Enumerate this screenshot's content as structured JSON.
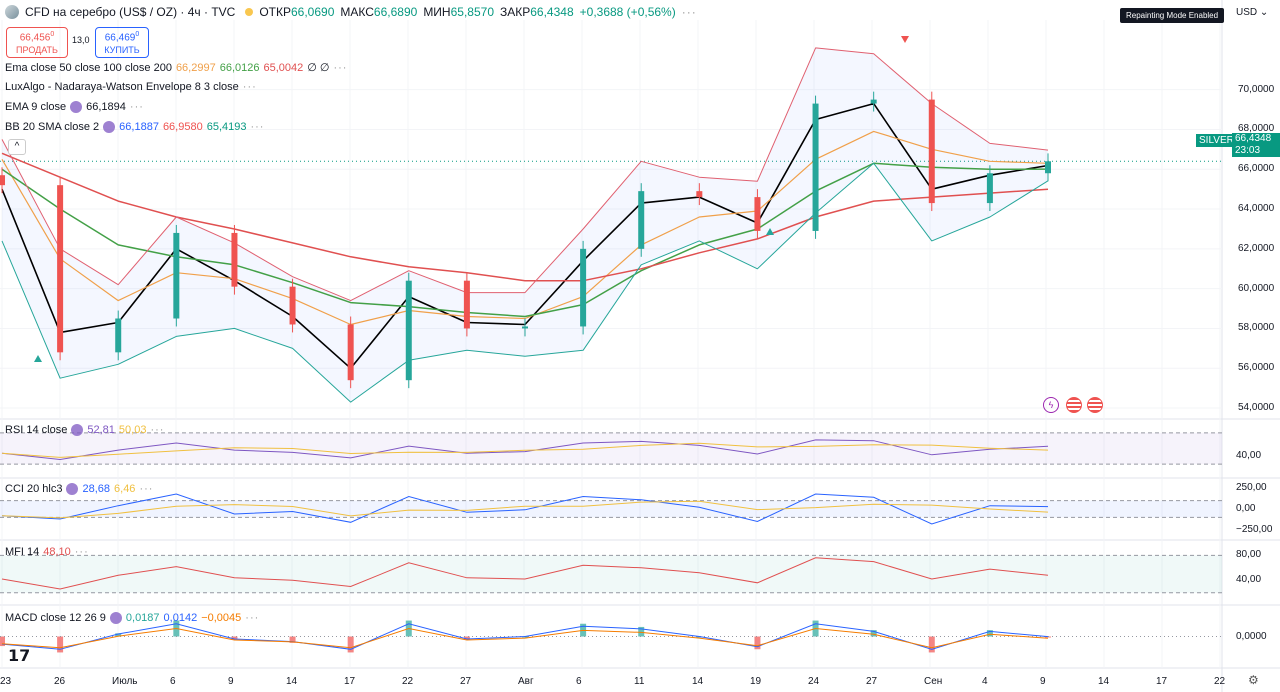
{
  "header": {
    "title": "CFD на серебро (US$ / OZ) · 4ч · TVC",
    "ohlc": {
      "open_label": "ОТКР",
      "open": "66,0690",
      "high_label": "МАКС",
      "high": "66,6890",
      "low_label": "МИН",
      "low": "65,8570",
      "close_label": "ЗАКР",
      "close": "66,4348",
      "change": "+0,3688 (+0,56%)"
    },
    "sell_price": "66,456",
    "sell_sup": "0",
    "sell_label": "ПРОДАТЬ",
    "spread": "13,0",
    "buy_price": "66,469",
    "buy_sup": "0",
    "buy_label": "КУПИТЬ",
    "repaint_badge": "Repainting Mode Enabled",
    "currency": "USD"
  },
  "indicators": {
    "ema_trio": {
      "label": "Ema close 50 close 100 close 200",
      "v1": "66,2997",
      "v2": "66,0126",
      "v3": "65,0042",
      "extra": "∅ ∅"
    },
    "luxalgo": {
      "label": "LuxAlgo - Nadaraya-Watson Envelope 8 3 close"
    },
    "ema9": {
      "label": "EMA 9 close",
      "v1": "66,1894"
    },
    "bb": {
      "label": "BB 20 SMA close 2",
      "v1": "66,1887",
      "v2": "66,9580",
      "v3": "65,4193"
    }
  },
  "panes": {
    "rsi": {
      "label": "RSI 14 close",
      "v1": "52,81",
      "v2": "50,03",
      "scale": [
        "40,00"
      ]
    },
    "cci": {
      "label": "CCI 20 hlc3",
      "v1": "28,68",
      "v2": "6,46",
      "scale": [
        "250,00",
        "0,00",
        "−250,00"
      ]
    },
    "mfi": {
      "label": "MFI 14",
      "v1": "48,10",
      "scale": [
        "80,00",
        "40,00"
      ]
    },
    "macd": {
      "label": "MACD close 12 26 9",
      "v1": "0,0187",
      "v2": "0,0142",
      "v3": "−0,0045",
      "scale": [
        "0,0000"
      ]
    }
  },
  "price_axis": {
    "ticks": [
      "70,0000",
      "68,0000",
      "66,0000",
      "64,0000",
      "62,0000",
      "60,0000",
      "58,0000",
      "56,0000",
      "54,0000"
    ],
    "symbol_tag": "SILVER",
    "last_price": "66,4348",
    "countdown": "23:03"
  },
  "time_axis": {
    "ticks": [
      "23",
      "26",
      "Июль",
      "6",
      "9",
      "14",
      "17",
      "22",
      "27",
      "Авг",
      "6",
      "11",
      "14",
      "19",
      "24",
      "27",
      "Сен",
      "4",
      "9",
      "14",
      "17",
      "22"
    ]
  },
  "colors": {
    "up": "#26a69a",
    "down": "#ef5350",
    "ema50": "#f0a04a",
    "ema100": "#43a047",
    "ema200": "#e05050",
    "ema9": "#000000",
    "bb_basis": "#2962ff",
    "bb_band": "#e06070",
    "envelope": "#26a69a",
    "accent": "#2962ff"
  },
  "chart_data": {
    "type": "line",
    "title": "CFD на серебро (US$ / OZ) · 4ч · TVC",
    "ylim": [
      53.5,
      73.5
    ],
    "x": [
      "23",
      "26",
      "Июль",
      "6",
      "9",
      "14",
      "17",
      "22",
      "27",
      "Авг",
      "6",
      "11",
      "14",
      "19",
      "24",
      "27",
      "Сен",
      "4",
      "9"
    ],
    "series": [
      {
        "name": "Close",
        "values": [
          65.2,
          56.8,
          58.5,
          62.8,
          60.1,
          58.2,
          55.4,
          60.4,
          58.0,
          58.1,
          62.0,
          64.9,
          64.6,
          62.9,
          69.3,
          69.5,
          64.3,
          65.8,
          66.4
        ]
      },
      {
        "name": "EMA 9 close",
        "values": [
          65.0,
          57.8,
          58.3,
          62.0,
          60.4,
          58.6,
          56.0,
          59.6,
          58.3,
          58.2,
          61.4,
          64.3,
          64.6,
          63.3,
          68.5,
          69.3,
          65.0,
          65.7,
          66.19
        ]
      },
      {
        "name": "Ema close 50",
        "values": [
          66.5,
          61.5,
          59.4,
          60.8,
          60.5,
          59.5,
          58.2,
          58.9,
          58.6,
          58.5,
          59.6,
          62.2,
          63.6,
          63.9,
          66.5,
          67.9,
          67.0,
          66.4,
          66.3
        ]
      },
      {
        "name": "Ema close 100",
        "values": [
          66.0,
          64.0,
          62.2,
          61.6,
          61.2,
          60.3,
          59.3,
          59.1,
          58.8,
          58.6,
          59.2,
          60.9,
          62.2,
          63.0,
          64.9,
          66.3,
          66.1,
          66.0,
          66.01
        ]
      },
      {
        "name": "Ema close 200",
        "values": [
          66.8,
          65.6,
          64.4,
          63.6,
          63.0,
          62.3,
          61.6,
          61.1,
          60.8,
          60.4,
          60.4,
          61.0,
          61.8,
          62.5,
          63.6,
          64.4,
          64.6,
          64.8,
          65.0
        ]
      },
      {
        "name": "BB upper",
        "values": [
          67.5,
          62.0,
          60.2,
          63.6,
          62.3,
          60.6,
          59.4,
          60.9,
          59.8,
          59.8,
          63.0,
          66.4,
          65.6,
          65.4,
          72.1,
          71.8,
          69.3,
          67.3,
          66.96
        ]
      },
      {
        "name": "BB lower",
        "values": [
          62.4,
          55.5,
          56.2,
          57.6,
          58.0,
          57.0,
          54.3,
          56.4,
          56.9,
          56.6,
          56.9,
          61.2,
          62.4,
          61.0,
          63.8,
          66.3,
          62.4,
          63.6,
          65.42
        ]
      }
    ],
    "indicator_panes": {
      "rsi_14": [
        44,
        36,
        48,
        57,
        48,
        45,
        38,
        53,
        44,
        46,
        57,
        59,
        54,
        43,
        61,
        60,
        42,
        49,
        52.81
      ],
      "cci_20": [
        -80,
        -120,
        40,
        180,
        -60,
        -30,
        -160,
        150,
        -40,
        -10,
        150,
        110,
        20,
        -150,
        180,
        140,
        -180,
        40,
        28.68
      ],
      "mfi_14": [
        42,
        26,
        48,
        62,
        44,
        40,
        30,
        68,
        44,
        42,
        64,
        60,
        52,
        36,
        76,
        70,
        42,
        58,
        48.1
      ],
      "macd_hist": [
        -0.3,
        -0.5,
        0.1,
        0.5,
        -0.1,
        -0.2,
        -0.5,
        0.5,
        -0.1,
        0.0,
        0.4,
        0.3,
        0.0,
        -0.4,
        0.5,
        0.2,
        -0.5,
        0.2,
        -0.0045
      ]
    }
  }
}
